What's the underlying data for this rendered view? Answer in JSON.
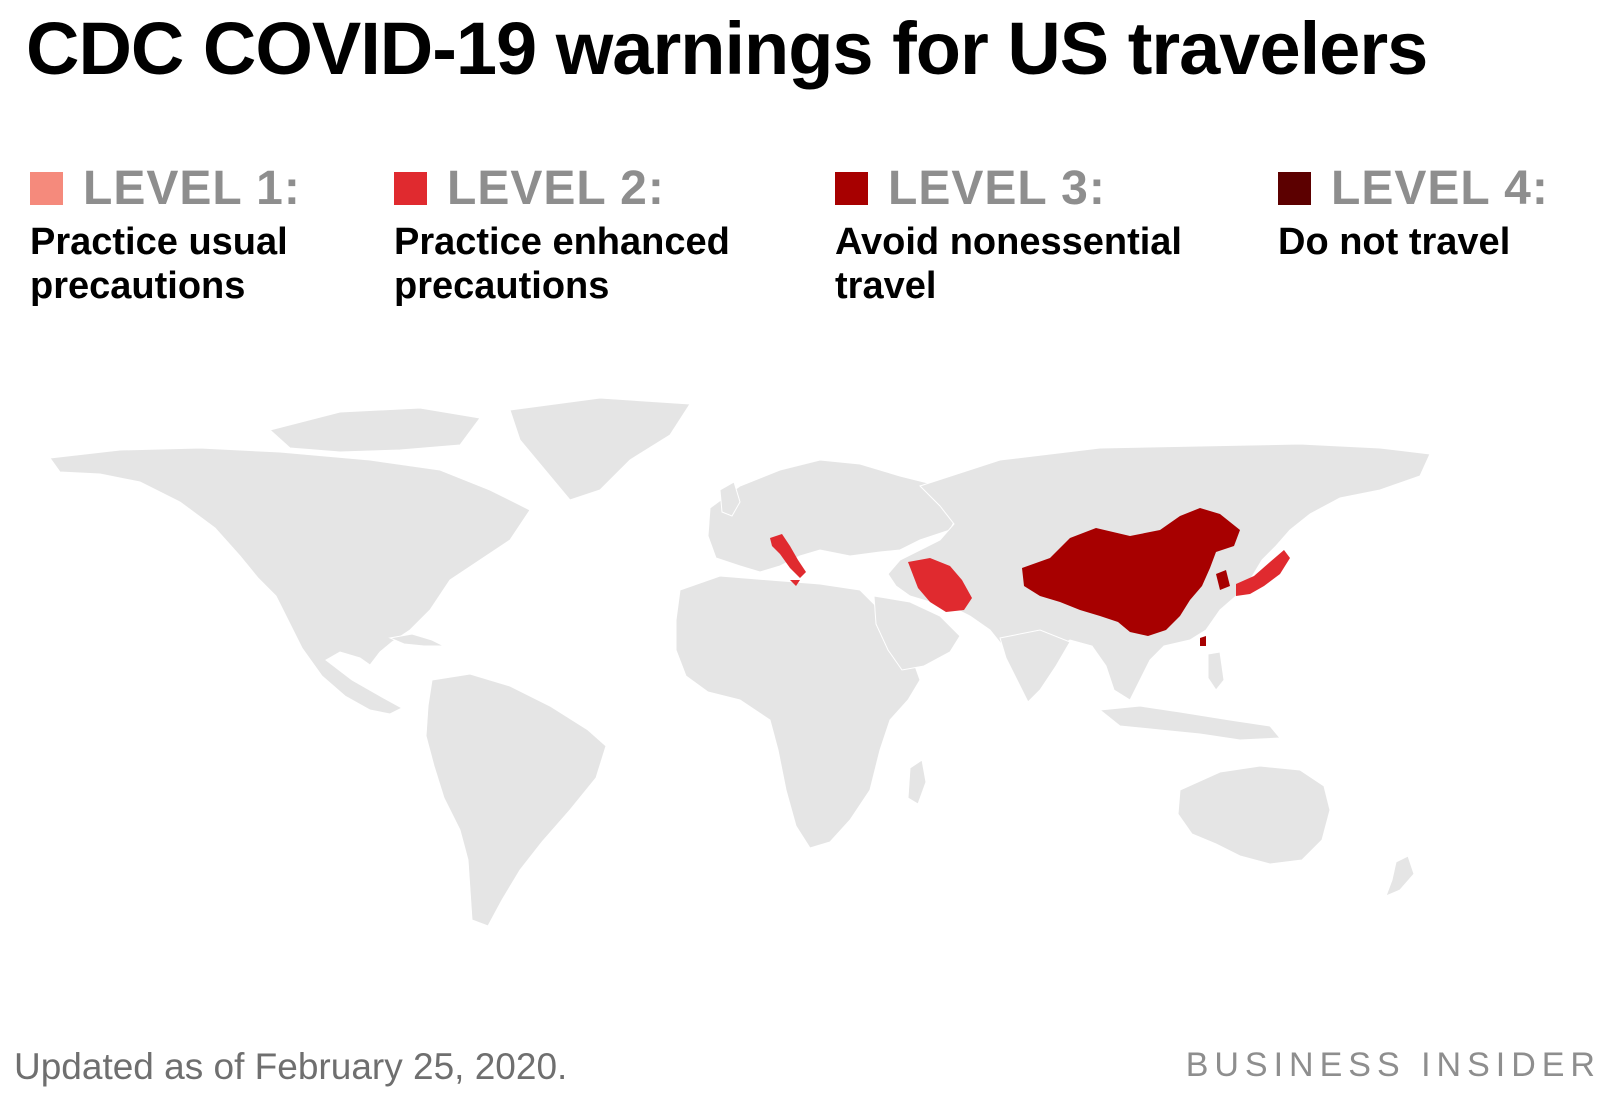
{
  "title": "CDC COVID-19 warnings for US travelers",
  "legend": [
    {
      "level": "LEVEL 1:",
      "description": "Practice usual precautions",
      "color": "#f58a7c"
    },
    {
      "level": "LEVEL 2:",
      "description": "Practice enhanced precautions",
      "color": "#e02a2f"
    },
    {
      "level": "LEVEL 3:",
      "description": "Avoid nonessential travel",
      "color": "#a70000"
    },
    {
      "level": "LEVEL 4:",
      "description": "Do not travel",
      "color": "#5c0000"
    }
  ],
  "map": {
    "base_color": "#e5e5e5",
    "highlighted": [
      {
        "country": "China",
        "level": 3
      },
      {
        "country": "South Korea",
        "level": 3
      },
      {
        "country": "Italy",
        "level": 2
      },
      {
        "country": "Iran",
        "level": 2
      },
      {
        "country": "Japan",
        "level": 2
      }
    ]
  },
  "footnote": "Updated as of February 25, 2020.",
  "brand": "BUSINESS INSIDER"
}
